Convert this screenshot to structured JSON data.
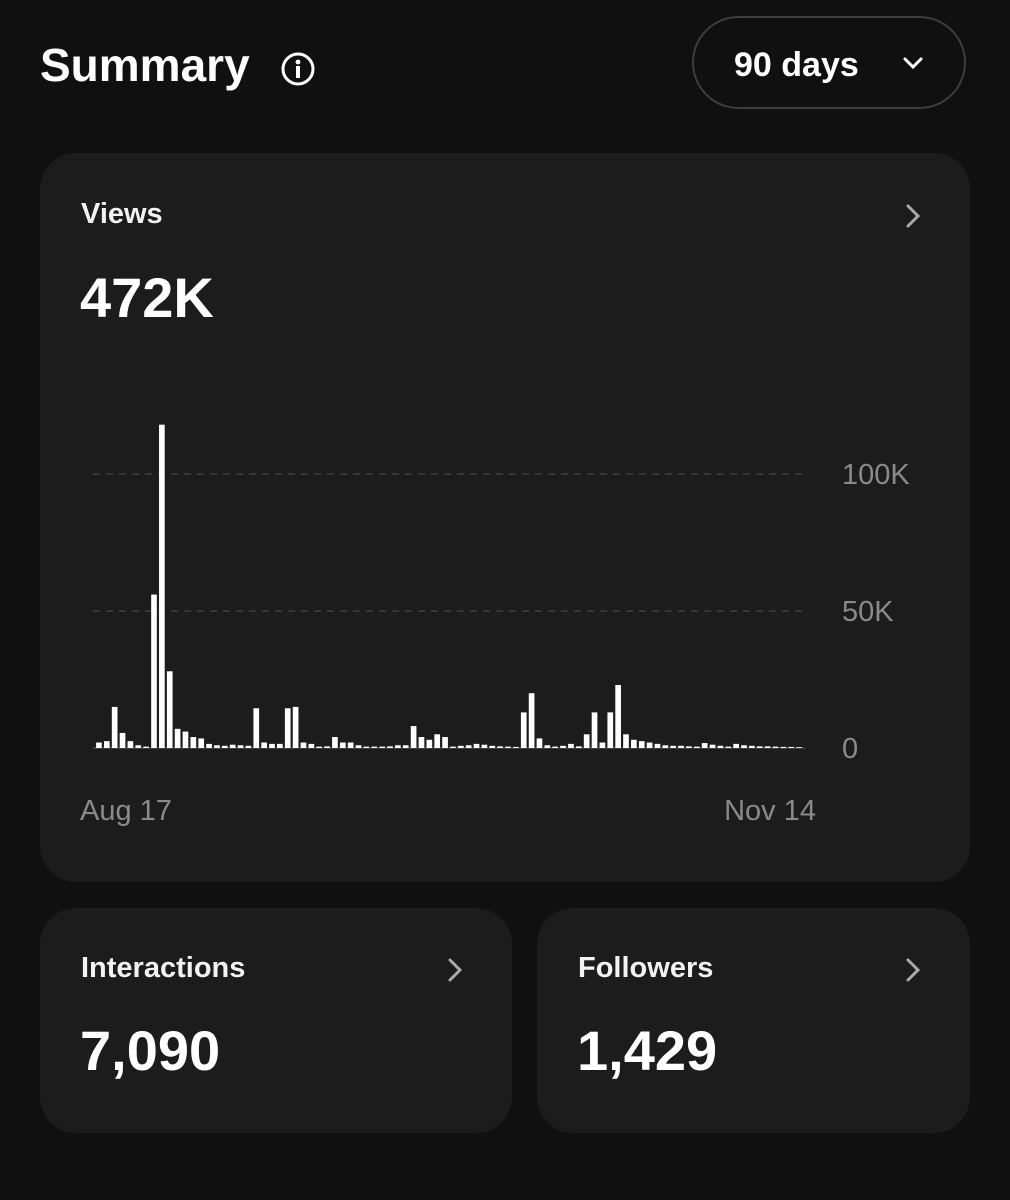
{
  "header": {
    "title": "Summary",
    "range": "90 days"
  },
  "cards": [
    {
      "label": "Views",
      "value": "472K"
    },
    {
      "label": "Interactions",
      "value": "7,090"
    },
    {
      "label": "Followers",
      "value": "1,429"
    }
  ],
  "chart_data": {
    "type": "bar",
    "color": "#ffffff",
    "categories": [
      "Aug 17",
      null,
      null,
      null,
      null,
      null,
      null,
      null,
      null,
      null,
      null,
      null,
      null,
      null,
      null,
      null,
      null,
      null,
      null,
      null,
      null,
      null,
      null,
      null,
      null,
      null,
      null,
      null,
      null,
      null,
      null,
      null,
      null,
      null,
      null,
      null,
      null,
      null,
      null,
      null,
      null,
      null,
      null,
      null,
      null,
      null,
      null,
      null,
      null,
      null,
      null,
      null,
      null,
      null,
      null,
      null,
      null,
      null,
      null,
      null,
      null,
      null,
      null,
      null,
      null,
      null,
      null,
      null,
      null,
      null,
      null,
      null,
      null,
      null,
      null,
      null,
      null,
      null,
      null,
      null,
      null,
      null,
      null,
      null,
      null,
      null,
      null,
      null,
      null,
      "Nov 14"
    ],
    "values": [
      2000,
      2500,
      15000,
      5500,
      2500,
      1000,
      500,
      56000,
      118000,
      28000,
      7000,
      6000,
      4000,
      3500,
      1500,
      1000,
      800,
      1200,
      1000,
      800,
      14500,
      2000,
      1500,
      1500,
      14500,
      15000,
      2000,
      1500,
      500,
      600,
      4000,
      2000,
      2000,
      1000,
      500,
      500,
      500,
      600,
      1000,
      1000,
      8000,
      4000,
      3000,
      5000,
      4000,
      500,
      800,
      1000,
      1500,
      1200,
      800,
      600,
      500,
      400,
      13000,
      20000,
      3500,
      1000,
      500,
      800,
      1500,
      600,
      5000,
      13000,
      2000,
      13000,
      23000,
      5000,
      3000,
      2500,
      2000,
      1500,
      1000,
      800,
      800,
      600,
      500,
      1800,
      1200,
      800,
      500,
      1500,
      1000,
      800,
      600,
      600,
      500,
      400,
      400,
      300
    ],
    "ylim": [
      0,
      120000
    ],
    "yticks": [
      0,
      {
        "value": 50000,
        "label": "50K"
      },
      {
        "value": 100000,
        "label": "100K"
      }
    ],
    "grid": true
  }
}
